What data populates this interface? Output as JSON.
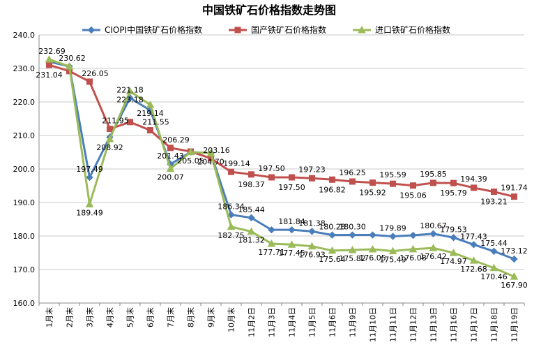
{
  "chart_data": {
    "type": "line",
    "title": "中国铁矿石价格指数走势图",
    "xlabel": "",
    "ylabel": "",
    "ylim": [
      160,
      240
    ],
    "yticks": [
      "160.0",
      "170.0",
      "180.0",
      "190.0",
      "200.0",
      "210.0",
      "220.0",
      "230.0",
      "240.0"
    ],
    "grid": true,
    "legend_position": "top",
    "categories": [
      "1月末",
      "2月末",
      "3月末",
      "4月末",
      "5月末",
      "6月末",
      "7月末",
      "8月末",
      "9月末",
      "10月末",
      "11月2日",
      "11月3日",
      "11月4日",
      "11月5日",
      "11月6日",
      "11月9日",
      "11月10日",
      "11月11日",
      "11月12日",
      "11月13日",
      "11月16日",
      "11月17日",
      "11月18日",
      "11月19日"
    ],
    "series": [
      {
        "name": "CIOPI中国铁矿石价格指数",
        "color": "#4a7ebb",
        "marker": "diamond",
        "values": [
          232.0,
          230.62,
          197.49,
          209.5,
          221.18,
          217.5,
          201.43,
          205.05,
          204.7,
          186.34,
          185.44,
          181.84,
          181.84,
          181.38,
          180.28,
          180.3,
          180.3,
          179.89,
          180.2,
          180.67,
          179.53,
          177.43,
          175.44,
          173.12
        ],
        "labels": [
          null,
          null,
          "197.49",
          null,
          "221.18",
          null,
          "201.43",
          null,
          null,
          "186.34",
          "185.44",
          null,
          "181.84",
          "181.38",
          "180.28",
          "180.30",
          null,
          "179.89",
          null,
          "180.67",
          "179.53",
          "177.43",
          "175.44",
          "173.12"
        ]
      },
      {
        "name": "国产铁矿石价格指数",
        "color": "#c0504d",
        "marker": "square",
        "values": [
          231.04,
          229.2,
          226.05,
          211.95,
          214.0,
          211.55,
          206.29,
          205.2,
          203.16,
          199.14,
          198.37,
          197.5,
          197.5,
          197.23,
          196.82,
          196.25,
          195.92,
          195.59,
          195.06,
          195.85,
          195.79,
          194.39,
          193.21,
          191.74
        ],
        "labels": [
          "231.04",
          null,
          "226.05",
          "211.95",
          null,
          "211.55",
          "206.29",
          null,
          "203.16",
          "199.14",
          "198.37",
          "197.50",
          "197.50",
          "197.23",
          "196.82",
          "196.25",
          "195.92",
          "195.59",
          "195.06",
          "195.85",
          "195.79",
          "194.39",
          "193.21",
          "191.74"
        ]
      },
      {
        "name": "进口铁矿石价格指数",
        "color": "#9bbb59",
        "marker": "triangle",
        "values": [
          232.69,
          230.62,
          189.49,
          208.92,
          223.18,
          219.14,
          200.07,
          205.05,
          204.7,
          182.75,
          181.32,
          177.71,
          177.45,
          176.93,
          175.64,
          175.82,
          176.05,
          175.49,
          176.08,
          176.42,
          174.97,
          172.68,
          170.46,
          167.9
        ],
        "labels": [
          "232.69",
          "230.62",
          "189.49",
          "208.92",
          "223.18",
          "219.14",
          "200.07",
          "205.05",
          "204.70",
          "182.75",
          "181.32",
          "177.71",
          "177.45",
          "176.93",
          "175.64",
          "175.82",
          "176.05",
          "175.49",
          "176.08",
          "176.42",
          "174.97",
          "172.68",
          "170.46",
          "167.90"
        ]
      }
    ]
  }
}
